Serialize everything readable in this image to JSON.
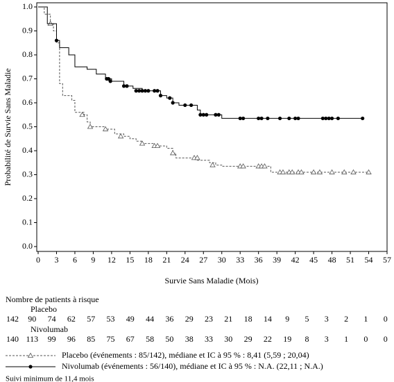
{
  "chart_data": {
    "type": "km",
    "xlabel": "Survie Sans Maladie (Mois)",
    "ylabel": "Probabilité de Survie Sans Maladie",
    "xlim": [
      0,
      57
    ],
    "ylim": [
      0,
      1
    ],
    "xticks": [
      0,
      3,
      6,
      9,
      12,
      15,
      18,
      21,
      24,
      27,
      30,
      33,
      36,
      39,
      42,
      45,
      48,
      51,
      54,
      57
    ],
    "yticks": [
      {
        "value": 0,
        "label": "0.0"
      },
      0.1,
      0.2,
      0.3,
      0.4,
      0.5,
      0.6,
      0.7,
      0.8,
      0.9,
      {
        "value": 1,
        "label": "1.0"
      }
    ],
    "at_risk_title": "Nombre de patients à risque",
    "footnote": "Suivi minimum de 11,4 mois",
    "series": [
      {
        "name": "Placebo",
        "color": "#555555",
        "line_style": "dashed",
        "marker": "triangle",
        "label": "Placebo (événements : 85/142), médiane et IC à 95 % : 8,41 (5,59 ; 20,04)",
        "x": [
          0,
          1,
          2,
          2.5,
          3,
          3.5,
          4,
          5.5,
          6,
          7.5,
          8,
          8.5,
          11,
          12.5,
          14,
          15,
          16,
          17,
          19,
          21,
          22,
          22.5,
          26,
          28,
          29,
          30,
          38,
          54
        ],
        "values": [
          1,
          0.97,
          0.93,
          0.9,
          0.85,
          0.68,
          0.63,
          0.61,
          0.56,
          0.55,
          0.52,
          0.5,
          0.49,
          0.47,
          0.46,
          0.45,
          0.44,
          0.43,
          0.42,
          0.41,
          0.39,
          0.37,
          0.36,
          0.35,
          0.34,
          0.335,
          0.31,
          0.31
        ],
        "censor_x": [
          2,
          7.2,
          8.5,
          11,
          13.5,
          17,
          19,
          19.5,
          22,
          25.5,
          26,
          28.5,
          33,
          33.5,
          36,
          36.5,
          37,
          39.5,
          40,
          41,
          41.5,
          42.5,
          43,
          45,
          46,
          48,
          50,
          51.5,
          54
        ],
        "censor_values": [
          0.93,
          0.55,
          0.5,
          0.49,
          0.46,
          0.43,
          0.42,
          0.42,
          0.39,
          0.37,
          0.37,
          0.34,
          0.335,
          0.335,
          0.335,
          0.335,
          0.335,
          0.31,
          0.31,
          0.31,
          0.31,
          0.31,
          0.31,
          0.31,
          0.31,
          0.31,
          0.31,
          0.31,
          0.31
        ],
        "at_risk": [
          142,
          90,
          74,
          62,
          57,
          53,
          49,
          44,
          36,
          29,
          23,
          21,
          18,
          14,
          9,
          5,
          3,
          2,
          1,
          0
        ]
      },
      {
        "name": "Nivolumab",
        "color": "#000000",
        "line_style": "solid",
        "marker": "circle",
        "label": "Nivolumab (événements : 56/140), médiane et IC à 95 % : N.A. (22,11 ; N.A.)",
        "x": [
          0,
          1.5,
          3,
          3.5,
          5,
          6,
          8,
          9.5,
          11,
          12,
          14,
          15.5,
          17,
          20,
          21,
          22,
          23,
          26,
          26.5,
          30,
          53
        ],
        "values": [
          1,
          0.93,
          0.86,
          0.83,
          0.8,
          0.75,
          0.74,
          0.72,
          0.7,
          0.69,
          0.67,
          0.66,
          0.65,
          0.63,
          0.62,
          0.6,
          0.59,
          0.57,
          0.55,
          0.535,
          0.535
        ],
        "censor_x": [
          3,
          11.2,
          11.5,
          11.8,
          14,
          14.5,
          16,
          16.5,
          17,
          17.5,
          18,
          19,
          19.5,
          20,
          21.5,
          22,
          24,
          25,
          26.5,
          27,
          27.5,
          29,
          29.5,
          33,
          33.5,
          36,
          36.5,
          37.5,
          39.5,
          41,
          42,
          42.5,
          46.5,
          47,
          47.5,
          48,
          49,
          53
        ],
        "censor_values": [
          0.86,
          0.7,
          0.7,
          0.69,
          0.67,
          0.67,
          0.65,
          0.65,
          0.65,
          0.65,
          0.65,
          0.65,
          0.65,
          0.63,
          0.62,
          0.6,
          0.59,
          0.59,
          0.55,
          0.55,
          0.55,
          0.55,
          0.55,
          0.535,
          0.535,
          0.535,
          0.535,
          0.535,
          0.535,
          0.535,
          0.535,
          0.535,
          0.535,
          0.535,
          0.535,
          0.535,
          0.535,
          0.535
        ],
        "at_risk": [
          140,
          113,
          99,
          96,
          85,
          75,
          67,
          58,
          50,
          38,
          33,
          30,
          29,
          22,
          19,
          8,
          3,
          1,
          0,
          0
        ]
      }
    ]
  }
}
